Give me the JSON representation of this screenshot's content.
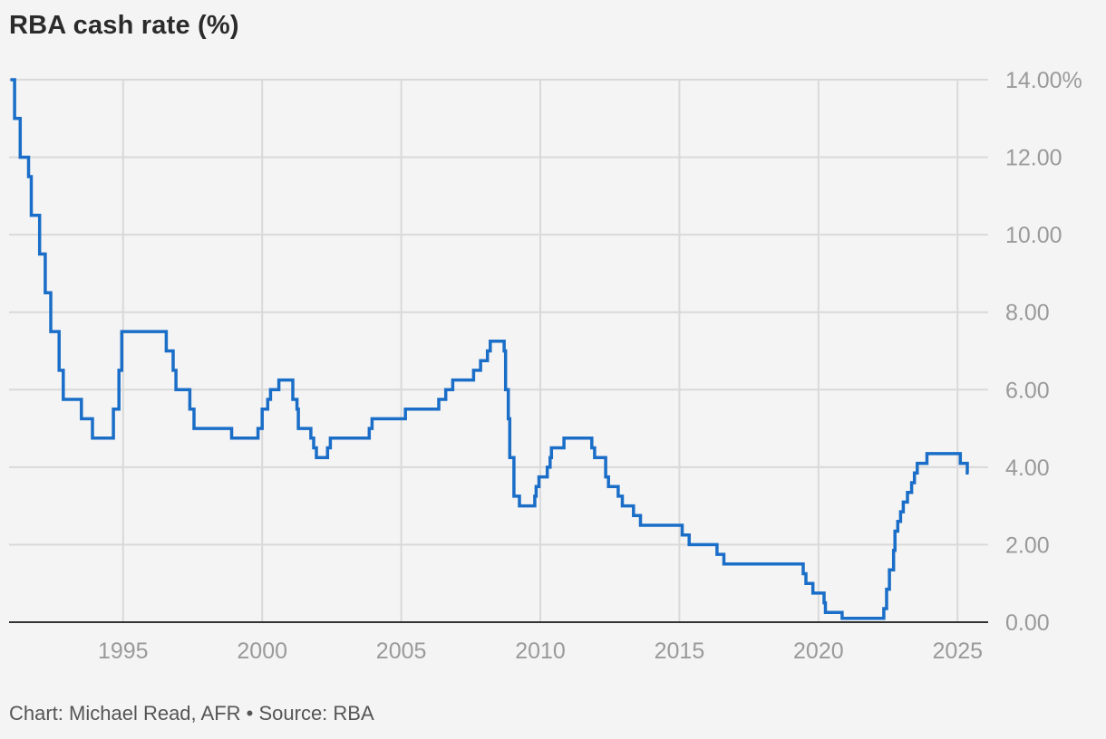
{
  "title": "RBA cash rate (%)",
  "footer": "Chart: Michael Read, AFR • Source: RBA",
  "colors": {
    "line": "#1a6ec8",
    "grid": "#d9d9d9",
    "axis": "#333333",
    "tick_text": "#9a9a9a",
    "background": "#f4f4f4"
  },
  "chart_data": {
    "type": "line",
    "title": "RBA cash rate (%)",
    "xlabel": "",
    "ylabel": "",
    "xlim": [
      1990.9,
      2026.1
    ],
    "ylim": [
      0,
      14
    ],
    "x_ticks": [
      1995,
      2000,
      2005,
      2010,
      2015,
      2020,
      2025
    ],
    "y_ticks": [
      0,
      2,
      4,
      6,
      8,
      10,
      12,
      14
    ],
    "y_tick_labels": [
      "0.00",
      "2.00",
      "4.00",
      "6.00",
      "8.00",
      "10.00",
      "12.00",
      "14.00%"
    ],
    "grid": true,
    "step": true,
    "series": [
      {
        "points": [
          [
            1990.95,
            14.0
          ],
          [
            1991.1,
            13.0
          ],
          [
            1991.3,
            12.0
          ],
          [
            1991.6,
            11.5
          ],
          [
            1991.7,
            10.5
          ],
          [
            1992.0,
            9.5
          ],
          [
            1992.2,
            8.5
          ],
          [
            1992.4,
            7.5
          ],
          [
            1992.7,
            6.5
          ],
          [
            1992.85,
            5.75
          ],
          [
            1993.5,
            5.25
          ],
          [
            1993.9,
            4.75
          ],
          [
            1994.65,
            5.5
          ],
          [
            1994.85,
            6.5
          ],
          [
            1994.95,
            7.5
          ],
          [
            1996.55,
            7.0
          ],
          [
            1996.8,
            6.5
          ],
          [
            1996.9,
            6.0
          ],
          [
            1997.4,
            5.5
          ],
          [
            1997.55,
            5.0
          ],
          [
            1998.9,
            4.75
          ],
          [
            1999.85,
            5.0
          ],
          [
            2000.0,
            5.5
          ],
          [
            2000.2,
            5.75
          ],
          [
            2000.3,
            6.0
          ],
          [
            2000.6,
            6.25
          ],
          [
            2001.1,
            5.75
          ],
          [
            2001.25,
            5.5
          ],
          [
            2001.3,
            5.0
          ],
          [
            2001.75,
            4.75
          ],
          [
            2001.85,
            4.5
          ],
          [
            2001.95,
            4.25
          ],
          [
            2002.35,
            4.5
          ],
          [
            2002.45,
            4.75
          ],
          [
            2003.85,
            5.0
          ],
          [
            2003.95,
            5.25
          ],
          [
            2005.15,
            5.5
          ],
          [
            2006.35,
            5.75
          ],
          [
            2006.6,
            6.0
          ],
          [
            2006.85,
            6.25
          ],
          [
            2007.6,
            6.5
          ],
          [
            2007.85,
            6.75
          ],
          [
            2008.1,
            7.0
          ],
          [
            2008.2,
            7.25
          ],
          [
            2008.7,
            7.0
          ],
          [
            2008.75,
            6.0
          ],
          [
            2008.85,
            5.25
          ],
          [
            2008.9,
            4.25
          ],
          [
            2009.05,
            3.25
          ],
          [
            2009.25,
            3.0
          ],
          [
            2009.8,
            3.25
          ],
          [
            2009.85,
            3.5
          ],
          [
            2009.95,
            3.75
          ],
          [
            2010.25,
            4.0
          ],
          [
            2010.35,
            4.25
          ],
          [
            2010.4,
            4.5
          ],
          [
            2010.85,
            4.75
          ],
          [
            2011.85,
            4.5
          ],
          [
            2011.95,
            4.25
          ],
          [
            2012.35,
            3.75
          ],
          [
            2012.45,
            3.5
          ],
          [
            2012.8,
            3.25
          ],
          [
            2012.95,
            3.0
          ],
          [
            2013.35,
            2.75
          ],
          [
            2013.6,
            2.5
          ],
          [
            2015.1,
            2.25
          ],
          [
            2015.35,
            2.0
          ],
          [
            2016.35,
            1.75
          ],
          [
            2016.6,
            1.5
          ],
          [
            2019.45,
            1.25
          ],
          [
            2019.55,
            1.0
          ],
          [
            2019.8,
            0.75
          ],
          [
            2020.2,
            0.5
          ],
          [
            2020.25,
            0.25
          ],
          [
            2020.85,
            0.1
          ],
          [
            2022.35,
            0.35
          ],
          [
            2022.45,
            0.85
          ],
          [
            2022.55,
            1.35
          ],
          [
            2022.7,
            1.85
          ],
          [
            2022.75,
            2.35
          ],
          [
            2022.85,
            2.6
          ],
          [
            2022.95,
            2.85
          ],
          [
            2023.05,
            3.1
          ],
          [
            2023.2,
            3.35
          ],
          [
            2023.35,
            3.6
          ],
          [
            2023.45,
            3.85
          ],
          [
            2023.55,
            4.1
          ],
          [
            2023.9,
            4.35
          ],
          [
            2025.1,
            4.1
          ],
          [
            2025.35,
            3.85
          ],
          [
            2025.4,
            3.85
          ]
        ]
      }
    ]
  }
}
